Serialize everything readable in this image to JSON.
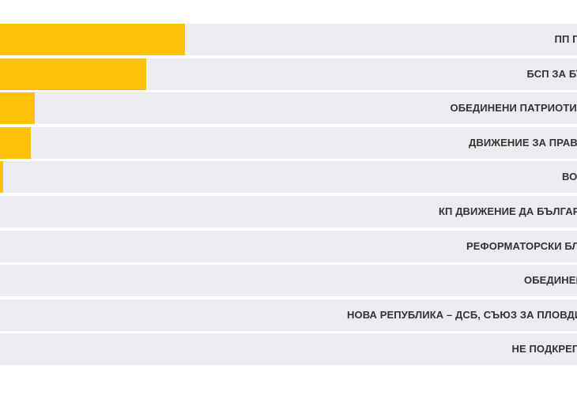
{
  "chart_data": {
    "type": "bar",
    "orientation": "horizontal",
    "categories": [
      "ПП ГЕРБ",
      "БСП ЗА БЪЛГАРИЯ",
      "ОБЕДИНЕНИ ПАТРИОТИ – НФСБ, АТАКА И ВМРО",
      "ДВИЖЕНИЕ ЗА ПРАВА И СВОБОДИ – ДПС",
      "ВОЛЯ",
      "КП ДВИЖЕНИЕ ДА БЪЛГАРИЯ (ЗЕЛЕНИТЕ, ДЕО, ДБГ)",
      "РЕФОРМАТОРСКИ БЛОК – ГЛАС НАРОДЕН",
      "ОБЕДИНЕНИЕ ДОСТ",
      "НОВА РЕПУБЛИКА – ДСБ, СЪЮЗ ЗА ПЛОВДИВ, БЪЛГАРСКА ДЕМОКРАТИЧНА ОБЩНОСТ",
      "НЕ ПОДКРЕПЯМ НИКОГО"
    ],
    "values": [
      32.1,
      25.4,
      6.0,
      5.3,
      0.5,
      0,
      0,
      0,
      0,
      0
    ],
    "xlim": [
      0,
      100
    ],
    "grid": false,
    "colors": {
      "bar": "#fcc108",
      "track": "#eaecef",
      "label": "#333333"
    }
  }
}
